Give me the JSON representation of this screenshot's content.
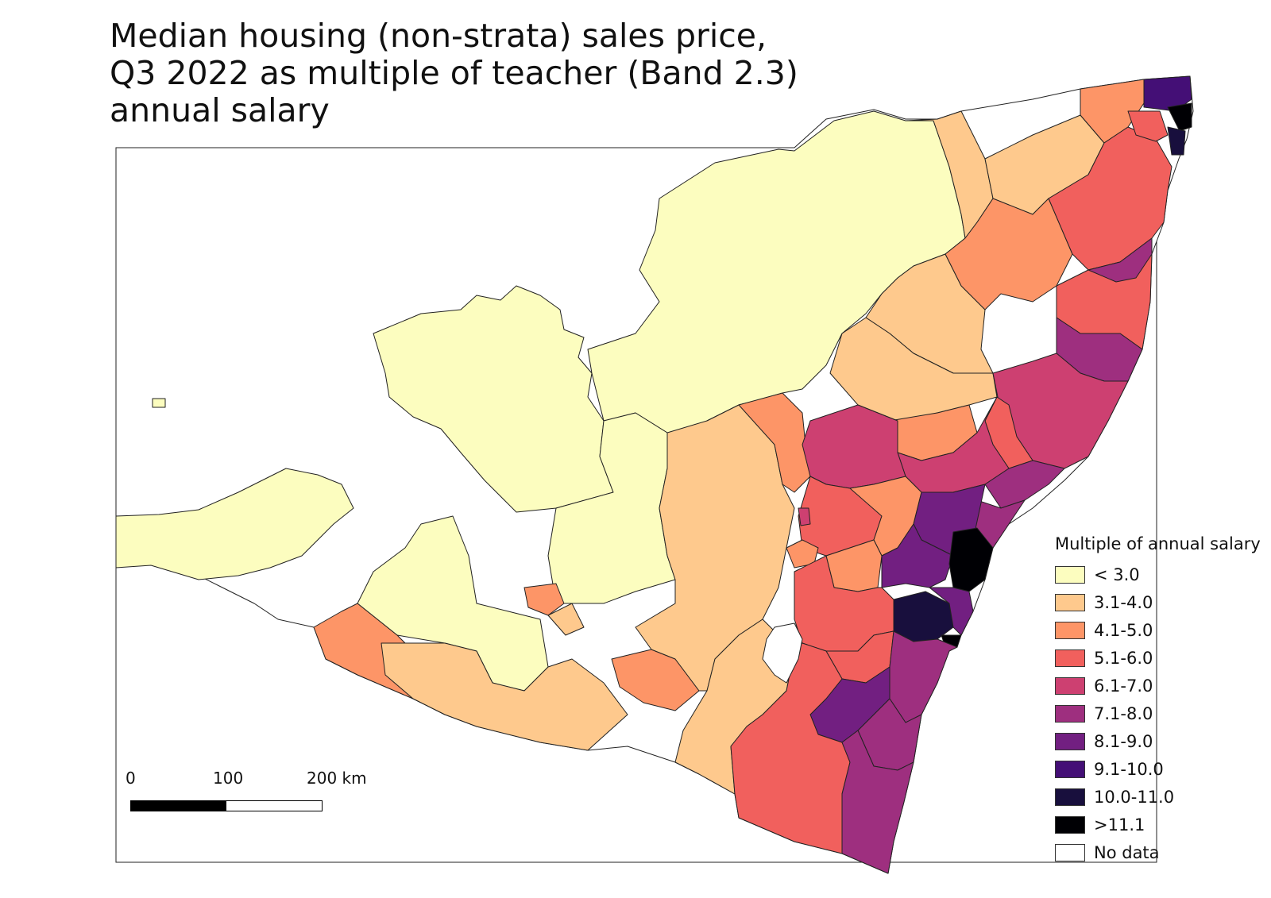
{
  "title_lines": [
    "Median housing (non-strata) sales price,",
    "Q3 2022 as multiple of teacher (Band 2.3)",
    "annual salary"
  ],
  "legend": {
    "title": "Multiple of annual salary",
    "classes": [
      {
        "label": "< 3.0",
        "color": "#fcfdbf"
      },
      {
        "label": "3.1-4.0",
        "color": "#fec98d"
      },
      {
        "label": "4.1-5.0",
        "color": "#fd9567"
      },
      {
        "label": "5.1-6.0",
        "color": "#f1605d"
      },
      {
        "label": "6.1-7.0",
        "color": "#cd4071"
      },
      {
        "label": "7.1-8.0",
        "color": "#9e2f7f"
      },
      {
        "label": "8.1-9.0",
        "color": "#721f81"
      },
      {
        "label": "9.1-10.0",
        "color": "#440f76"
      },
      {
        "label": "10.0-11.0",
        "color": "#180f3d"
      },
      {
        "label": ">11.1",
        "color": "#000004"
      },
      {
        "label": "No data",
        "color": "#ffffff"
      }
    ]
  },
  "scale_bar": {
    "labels": [
      "0",
      "100",
      "200 km"
    ]
  }
}
